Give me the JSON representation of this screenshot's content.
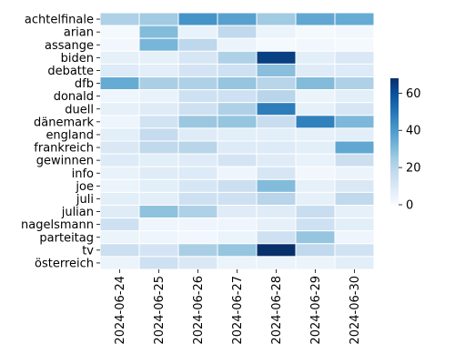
{
  "chart_data": {
    "type": "heatmap",
    "title": "",
    "xlabel": "",
    "ylabel": "",
    "x": [
      "2024-06-24",
      "2024-06-25",
      "2024-06-26",
      "2024-06-27",
      "2024-06-28",
      "2024-06-29",
      "2024-06-30"
    ],
    "y": [
      "achtelfinale",
      "arian",
      "assange",
      "biden",
      "debatte",
      "dfb",
      "donald",
      "duell",
      "dänemark",
      "england",
      "frankreich",
      "gewinnen",
      "info",
      "joe",
      "juli",
      "julian",
      "nagelsmann",
      "parteitag",
      "tv",
      "österreich"
    ],
    "values": [
      [
        22,
        25,
        42,
        38,
        25,
        36,
        35
      ],
      [
        1,
        30,
        5,
        18,
        4,
        1,
        2
      ],
      [
        2,
        32,
        19,
        4,
        1,
        2,
        1
      ],
      [
        6,
        6,
        11,
        22,
        64,
        7,
        10
      ],
      [
        9,
        7,
        12,
        14,
        29,
        8,
        9
      ],
      [
        35,
        23,
        22,
        27,
        20,
        30,
        22
      ],
      [
        3,
        5,
        14,
        14,
        20,
        4,
        7
      ],
      [
        6,
        8,
        14,
        22,
        48,
        6,
        11
      ],
      [
        3,
        13,
        26,
        27,
        16,
        47,
        31
      ],
      [
        7,
        17,
        8,
        7,
        7,
        6,
        7
      ],
      [
        10,
        18,
        20,
        9,
        9,
        7,
        36
      ],
      [
        9,
        7,
        8,
        12,
        8,
        5,
        15
      ],
      [
        5,
        8,
        9,
        3,
        11,
        2,
        4
      ],
      [
        4,
        7,
        11,
        15,
        30,
        6,
        10
      ],
      [
        7,
        7,
        14,
        14,
        20,
        6,
        18
      ],
      [
        8,
        28,
        22,
        8,
        8,
        16,
        6
      ],
      [
        14,
        3,
        3,
        3,
        6,
        14,
        7
      ],
      [
        4,
        3,
        2,
        4,
        14,
        27,
        3
      ],
      [
        15,
        12,
        23,
        27,
        68,
        18,
        13
      ],
      [
        4,
        14,
        10,
        4,
        4,
        4,
        7
      ]
    ],
    "colorbar": {
      "min": 0,
      "max": 68,
      "ticks": [
        0,
        20,
        40,
        60
      ]
    },
    "colormap": "Blues",
    "grid": false,
    "legend": "colorbar-right",
    "cell_border_color": "#ffffff"
  }
}
